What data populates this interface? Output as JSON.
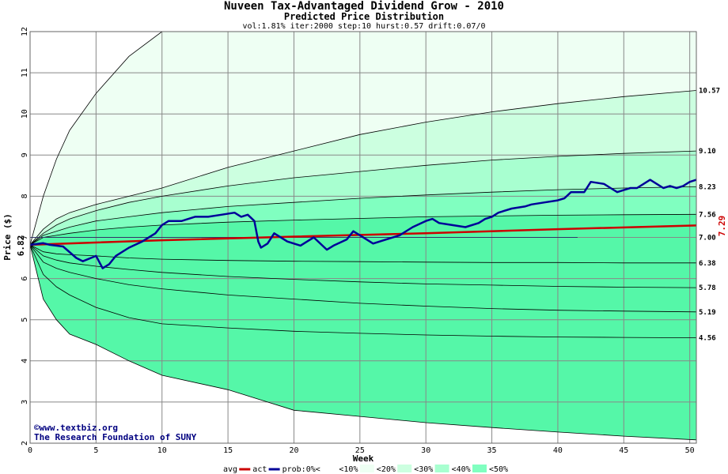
{
  "chart_data": {
    "type": "line",
    "title": "Nuveen Tax-Advantaged Dividend Grow - 2010",
    "subtitle": "Predicted Price Distribution",
    "params": "vol:1.81% iter:2000 step:10 hurst:0.57 drift:0.07/0",
    "xlabel": "Week",
    "ylabel": "Price ($)",
    "xlim": [
      0,
      50.5
    ],
    "ylim": [
      2,
      12
    ],
    "x_ticks": [
      0,
      5,
      10,
      15,
      20,
      25,
      30,
      35,
      40,
      45,
      50
    ],
    "y_ticks": [
      2,
      3,
      4,
      5,
      6,
      7,
      8,
      9,
      10,
      11,
      12
    ],
    "start_price": 6.82,
    "start_price_label": "6.82",
    "end_avg_label": "7.29",
    "right_labels": [
      "10.57",
      "9.10",
      "8.23",
      "7.56",
      "7.00",
      "6.38",
      "5.78",
      "5.19",
      "4.56"
    ],
    "bands": {
      "x": [
        0,
        1,
        2,
        3,
        5,
        7.5,
        10,
        15,
        20,
        25,
        30,
        35,
        40,
        45,
        50.5
      ],
      "upper": [
        [
          6.82,
          8.0,
          8.9,
          9.6,
          10.5,
          11.4,
          12.0,
          12.0,
          12.0,
          12.0,
          12.0,
          12.0,
          12.0,
          12.0,
          12.0
        ],
        [
          6.82,
          7.2,
          7.45,
          7.6,
          7.8,
          8.0,
          8.2,
          8.7,
          9.1,
          9.5,
          9.8,
          10.05,
          10.25,
          10.42,
          10.57
        ],
        [
          6.82,
          7.1,
          7.3,
          7.45,
          7.65,
          7.85,
          8.0,
          8.25,
          8.45,
          8.6,
          8.75,
          8.88,
          8.97,
          9.04,
          9.1
        ],
        [
          6.82,
          7.05,
          7.15,
          7.25,
          7.4,
          7.5,
          7.6,
          7.75,
          7.85,
          7.95,
          8.03,
          8.1,
          8.16,
          8.2,
          8.23
        ],
        [
          6.82,
          7.0,
          7.05,
          7.1,
          7.18,
          7.25,
          7.3,
          7.37,
          7.42,
          7.46,
          7.5,
          7.52,
          7.54,
          7.55,
          7.56
        ]
      ],
      "lower": [
        [
          6.82,
          6.65,
          6.6,
          6.58,
          6.55,
          6.5,
          6.47,
          6.44,
          6.42,
          6.41,
          6.4,
          6.39,
          6.39,
          6.38,
          6.38
        ],
        [
          6.82,
          6.55,
          6.45,
          6.38,
          6.3,
          6.22,
          6.15,
          6.05,
          5.98,
          5.92,
          5.87,
          5.84,
          5.81,
          5.79,
          5.78
        ],
        [
          6.82,
          6.4,
          6.25,
          6.15,
          6.0,
          5.85,
          5.75,
          5.6,
          5.5,
          5.4,
          5.33,
          5.27,
          5.23,
          5.21,
          5.19
        ],
        [
          6.82,
          6.1,
          5.8,
          5.6,
          5.3,
          5.05,
          4.9,
          4.8,
          4.72,
          4.67,
          4.63,
          4.6,
          4.58,
          4.57,
          4.56
        ],
        [
          6.82,
          5.5,
          5.0,
          4.65,
          4.4,
          4.0,
          3.65,
          3.3,
          2.8,
          2.65,
          2.5,
          2.38,
          2.27,
          2.17,
          2.08
        ]
      ]
    },
    "avg_series": {
      "name": "avg",
      "x": [
        0,
        10,
        20,
        30,
        40,
        50.5
      ],
      "y": [
        6.82,
        6.93,
        7.02,
        7.1,
        7.2,
        7.29
      ]
    },
    "flat_line": {
      "x": [
        0,
        41.5
      ],
      "y": [
        7.0,
        7.0
      ]
    },
    "act_series": {
      "name": "act",
      "x": [
        0,
        1,
        1.5,
        2.5,
        3.5,
        4,
        5,
        5.5,
        6,
        6.5,
        7.5,
        8.5,
        9.5,
        10,
        10.5,
        11.5,
        12.5,
        13.5,
        14.5,
        15.5,
        16,
        16.5,
        17,
        17.3,
        17.5,
        18,
        18.5,
        19.5,
        20.5,
        21,
        21.5,
        22.5,
        23,
        24,
        24.5,
        25.5,
        26,
        27,
        28,
        29,
        30,
        30.5,
        31,
        32,
        33,
        34,
        34.5,
        35,
        35.5,
        36.5,
        37.5,
        38,
        39,
        40,
        40.5,
        41,
        42,
        42.5,
        43.5,
        44,
        44.5,
        45,
        45.5,
        46,
        46.5,
        47,
        47.5,
        48,
        48.5,
        49,
        49.5,
        50,
        50.5
      ],
      "y": [
        6.82,
        6.86,
        6.82,
        6.78,
        6.5,
        6.42,
        6.55,
        6.25,
        6.35,
        6.55,
        6.75,
        6.9,
        7.1,
        7.3,
        7.4,
        7.4,
        7.5,
        7.5,
        7.55,
        7.6,
        7.5,
        7.55,
        7.4,
        6.9,
        6.75,
        6.85,
        7.1,
        6.9,
        6.8,
        6.9,
        7.0,
        6.7,
        6.8,
        6.95,
        7.15,
        6.95,
        6.85,
        6.95,
        7.05,
        7.25,
        7.4,
        7.45,
        7.35,
        7.3,
        7.25,
        7.35,
        7.45,
        7.5,
        7.6,
        7.7,
        7.75,
        7.8,
        7.85,
        7.9,
        7.95,
        8.1,
        8.1,
        8.35,
        8.3,
        8.2,
        8.1,
        8.15,
        8.2,
        8.2,
        8.3,
        8.4,
        8.3,
        8.2,
        8.25,
        8.2,
        8.25,
        8.35,
        8.4
      ]
    },
    "legend": [
      "avg",
      "act",
      "prob:0%<",
      "<10%",
      "<20%",
      "<30%",
      "<40%",
      "<50%"
    ],
    "colors": {
      "band_outer": "#eefff3",
      "band_2": "#ccffe0",
      "band_3": "#a8ffd0",
      "band_4": "#80ffc0",
      "band_inner": "#55f7a8",
      "avg": "#cc0000",
      "act": "#000099",
      "grid": "#888888",
      "boundary": "#000000"
    }
  },
  "credit": {
    "copyright": "©www.textbiz.org",
    "org": "The Research Foundation of SUNY"
  }
}
